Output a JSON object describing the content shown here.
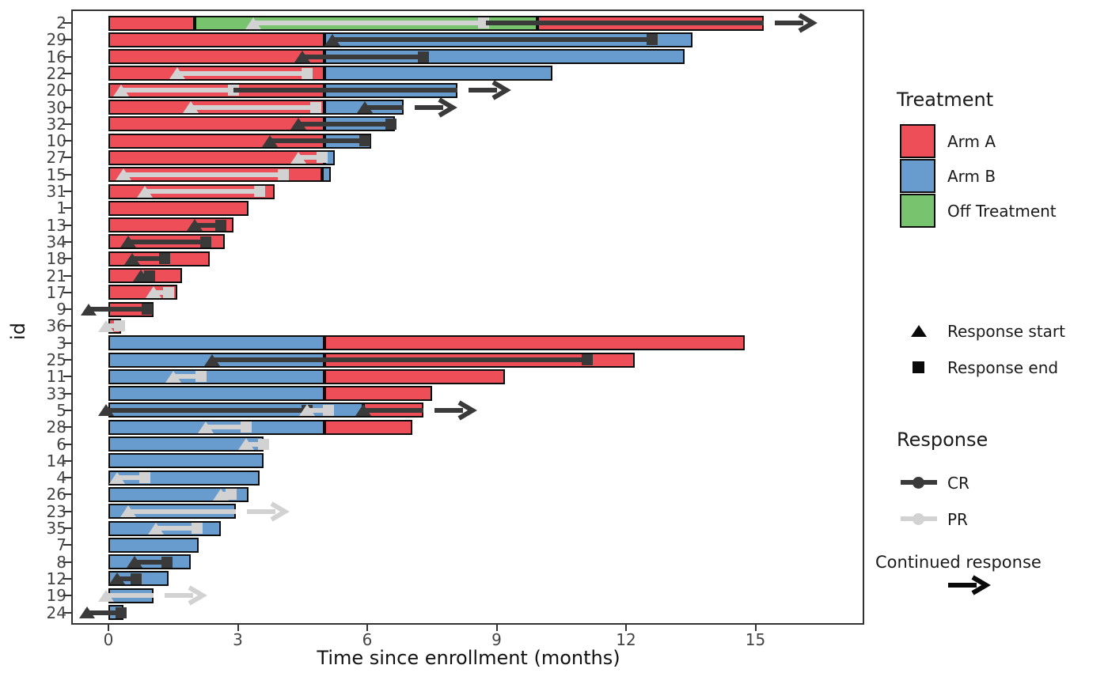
{
  "chart_data": {
    "type": "bar",
    "subtype": "swimmer-plot",
    "xlabel": "Time since enrollment (months)",
    "ylabel": "id",
    "x_ticks": [
      0,
      3,
      6,
      9,
      12,
      15
    ],
    "xlim": [
      -0.85,
      17.5
    ],
    "grid": false,
    "colors": {
      "arm_a": "#ED4E58",
      "arm_b": "#689CCE",
      "off_treatment": "#77C36E",
      "cr": "#3A3A3A",
      "pr": "#D2D2D2",
      "bar_stroke": "#0D0D0D",
      "panel_border": "#333333",
      "tick_label": "#444444"
    },
    "legend": {
      "treatment_title": "Treatment",
      "treatments": [
        {
          "label": "Arm A",
          "color": "#ED4E58"
        },
        {
          "label": "Arm B",
          "color": "#689CCE"
        },
        {
          "label": "Off Treatment",
          "color": "#77C36E"
        }
      ],
      "response_start_label": "Response start",
      "response_end_label": "Response end",
      "response_title": "Response",
      "responses": [
        {
          "label": "CR",
          "color": "#3A3A3A"
        },
        {
          "label": "PR",
          "color": "#D2D2D2"
        }
      ],
      "continued_label": "Continued response"
    },
    "rows": [
      {
        "id": "2",
        "segments": [
          {
            "arm": "A",
            "start": 0,
            "end": 2.0
          },
          {
            "arm": "OFF",
            "start": 2.0,
            "end": 9.95
          },
          {
            "arm": "A",
            "start": 9.95,
            "end": 15.2
          }
        ],
        "responses": [
          {
            "type": "PR",
            "start": 3.35,
            "end": 8.7,
            "tri": true,
            "sq": true,
            "arrow": false
          },
          {
            "type": "CR",
            "start": 8.75,
            "end": 15.2,
            "tri": false,
            "sq": false,
            "arrow": true
          }
        ]
      },
      {
        "id": "29",
        "segments": [
          {
            "arm": "A",
            "start": 0,
            "end": 5.0
          },
          {
            "arm": "B",
            "start": 5.0,
            "end": 13.55
          }
        ],
        "responses": [
          {
            "type": "CR",
            "start": 5.2,
            "end": 12.6,
            "tri": true,
            "sq": true,
            "arrow": false
          }
        ]
      },
      {
        "id": "16",
        "segments": [
          {
            "arm": "A",
            "start": 0,
            "end": 5.0
          },
          {
            "arm": "B",
            "start": 5.0,
            "end": 13.35
          }
        ],
        "responses": [
          {
            "type": "CR",
            "start": 4.5,
            "end": 7.3,
            "tri": true,
            "sq": true,
            "arrow": false
          }
        ]
      },
      {
        "id": "22",
        "segments": [
          {
            "arm": "A",
            "start": 0,
            "end": 5.0
          },
          {
            "arm": "B",
            "start": 5.0,
            "end": 10.3
          }
        ],
        "responses": [
          {
            "type": "PR",
            "start": 1.6,
            "end": 4.6,
            "tri": true,
            "sq": true,
            "arrow": false
          }
        ]
      },
      {
        "id": "20",
        "segments": [
          {
            "arm": "A",
            "start": 0,
            "end": 5.0
          },
          {
            "arm": "B",
            "start": 5.0,
            "end": 8.1
          }
        ],
        "responses": [
          {
            "type": "PR",
            "start": 0.3,
            "end": 2.9,
            "tri": true,
            "sq": true,
            "arrow": false
          },
          {
            "type": "CR",
            "start": 2.9,
            "end": 8.1,
            "tri": false,
            "sq": false,
            "arrow": true
          }
        ]
      },
      {
        "id": "30",
        "segments": [
          {
            "arm": "A",
            "start": 0,
            "end": 5.0
          },
          {
            "arm": "B",
            "start": 5.0,
            "end": 6.85
          }
        ],
        "responses": [
          {
            "type": "PR",
            "start": 1.9,
            "end": 4.8,
            "tri": true,
            "sq": true,
            "arrow": false
          },
          {
            "type": "CR",
            "start": 5.95,
            "end": 6.85,
            "tri": true,
            "sq": false,
            "arrow": true
          }
        ]
      },
      {
        "id": "32",
        "segments": [
          {
            "arm": "A",
            "start": 0,
            "end": 5.0
          },
          {
            "arm": "B",
            "start": 5.0,
            "end": 6.65
          }
        ],
        "responses": [
          {
            "type": "CR",
            "start": 4.4,
            "end": 6.55,
            "tri": true,
            "sq": true,
            "arrow": false
          }
        ]
      },
      {
        "id": "10",
        "segments": [
          {
            "arm": "A",
            "start": 0,
            "end": 5.0
          },
          {
            "arm": "B",
            "start": 5.0,
            "end": 6.1
          }
        ],
        "responses": [
          {
            "type": "CR",
            "start": 3.75,
            "end": 5.95,
            "tri": true,
            "sq": true,
            "arrow": false
          }
        ]
      },
      {
        "id": "27",
        "segments": [
          {
            "arm": "A",
            "start": 0,
            "end": 5.0
          },
          {
            "arm": "B",
            "start": 5.0,
            "end": 5.25
          }
        ],
        "responses": [
          {
            "type": "PR",
            "start": 4.4,
            "end": 4.95,
            "tri": true,
            "sq": true,
            "arrow": false
          }
        ]
      },
      {
        "id": "15",
        "segments": [
          {
            "arm": "A",
            "start": 0,
            "end": 4.95
          },
          {
            "arm": "B",
            "start": 4.95,
            "end": 5.15
          }
        ],
        "responses": [
          {
            "type": "PR",
            "start": 0.35,
            "end": 4.05,
            "tri": true,
            "sq": true,
            "arrow": false
          }
        ]
      },
      {
        "id": "31",
        "segments": [
          {
            "arm": "A",
            "start": 0,
            "end": 3.85
          }
        ],
        "responses": [
          {
            "type": "PR",
            "start": 0.85,
            "end": 3.5,
            "tri": true,
            "sq": true,
            "arrow": false
          }
        ]
      },
      {
        "id": "1",
        "segments": [
          {
            "arm": "A",
            "start": 0,
            "end": 3.25
          }
        ],
        "responses": []
      },
      {
        "id": "13",
        "segments": [
          {
            "arm": "A",
            "start": 0,
            "end": 2.9
          }
        ],
        "responses": [
          {
            "type": "CR",
            "start": 2.0,
            "end": 2.6,
            "tri": true,
            "sq": true,
            "arrow": false
          }
        ]
      },
      {
        "id": "34",
        "segments": [
          {
            "arm": "A",
            "start": 0,
            "end": 2.7
          }
        ],
        "responses": [
          {
            "type": "CR",
            "start": 0.45,
            "end": 2.25,
            "tri": true,
            "sq": true,
            "arrow": false
          }
        ]
      },
      {
        "id": "18",
        "segments": [
          {
            "arm": "A",
            "start": 0,
            "end": 2.35
          }
        ],
        "responses": [
          {
            "type": "CR",
            "start": 0.55,
            "end": 1.3,
            "tri": true,
            "sq": true,
            "arrow": false
          }
        ]
      },
      {
        "id": "21",
        "segments": [
          {
            "arm": "A",
            "start": 0,
            "end": 1.7
          }
        ],
        "responses": [
          {
            "type": "CR",
            "start": 0.75,
            "end": 0.95,
            "tri": true,
            "sq": true,
            "arrow": false
          }
        ]
      },
      {
        "id": "17",
        "segments": [
          {
            "arm": "A",
            "start": 0,
            "end": 1.6
          }
        ],
        "responses": [
          {
            "type": "PR",
            "start": 1.05,
            "end": 1.4,
            "tri": true,
            "sq": true,
            "arrow": false
          }
        ]
      },
      {
        "id": "9",
        "segments": [
          {
            "arm": "A",
            "start": 0,
            "end": 1.05
          }
        ],
        "responses": [
          {
            "type": "CR",
            "start": -0.45,
            "end": 0.9,
            "tri": true,
            "sq": true,
            "arrow": false
          }
        ]
      },
      {
        "id": "36",
        "segments": [
          {
            "arm": "A",
            "start": 0,
            "end": 0.3
          }
        ],
        "responses": [
          {
            "type": "PR",
            "start": -0.05,
            "end": 0.25,
            "tri": true,
            "sq": true,
            "arrow": false
          }
        ]
      },
      {
        "id": "3",
        "segments": [
          {
            "arm": "B",
            "start": 0,
            "end": 5.0
          },
          {
            "arm": "A",
            "start": 5.0,
            "end": 14.75
          }
        ],
        "responses": []
      },
      {
        "id": "25",
        "segments": [
          {
            "arm": "B",
            "start": 0,
            "end": 5.0
          },
          {
            "arm": "A",
            "start": 5.0,
            "end": 12.2
          }
        ],
        "responses": [
          {
            "type": "CR",
            "start": 2.4,
            "end": 11.1,
            "tri": true,
            "sq": true,
            "arrow": false
          }
        ]
      },
      {
        "id": "11",
        "segments": [
          {
            "arm": "B",
            "start": 0,
            "end": 5.0
          },
          {
            "arm": "A",
            "start": 5.0,
            "end": 9.2
          }
        ],
        "responses": [
          {
            "type": "PR",
            "start": 1.5,
            "end": 2.15,
            "tri": true,
            "sq": true,
            "arrow": false
          }
        ]
      },
      {
        "id": "33",
        "segments": [
          {
            "arm": "B",
            "start": 0,
            "end": 5.0
          },
          {
            "arm": "A",
            "start": 5.0,
            "end": 7.5
          }
        ],
        "responses": []
      },
      {
        "id": "5",
        "segments": [
          {
            "arm": "B",
            "start": 0,
            "end": 5.9
          },
          {
            "arm": "A",
            "start": 5.9,
            "end": 7.3
          }
        ],
        "responses": [
          {
            "type": "CR",
            "start": -0.05,
            "end": 4.6,
            "tri": true,
            "sq": true,
            "arrow": false
          },
          {
            "type": "PR",
            "start": 4.6,
            "end": 5.1,
            "tri": true,
            "sq": true,
            "arrow": false
          },
          {
            "type": "CR",
            "start": 5.9,
            "end": 7.3,
            "tri": true,
            "sq": false,
            "arrow": true
          }
        ]
      },
      {
        "id": "28",
        "segments": [
          {
            "arm": "B",
            "start": 0,
            "end": 5.0
          },
          {
            "arm": "A",
            "start": 5.0,
            "end": 7.05
          }
        ],
        "responses": [
          {
            "type": "PR",
            "start": 2.25,
            "end": 3.2,
            "tri": true,
            "sq": true,
            "arrow": false
          }
        ]
      },
      {
        "id": "6",
        "segments": [
          {
            "arm": "B",
            "start": 0,
            "end": 3.6
          }
        ],
        "responses": [
          {
            "type": "PR",
            "start": 3.2,
            "end": 3.6,
            "tri": true,
            "sq": true,
            "arrow": false
          }
        ]
      },
      {
        "id": "14",
        "segments": [
          {
            "arm": "B",
            "start": 0,
            "end": 3.6
          }
        ],
        "responses": []
      },
      {
        "id": "4",
        "segments": [
          {
            "arm": "B",
            "start": 0,
            "end": 3.5
          }
        ],
        "responses": [
          {
            "type": "PR",
            "start": 0.2,
            "end": 0.85,
            "tri": true,
            "sq": true,
            "arrow": false
          }
        ]
      },
      {
        "id": "26",
        "segments": [
          {
            "arm": "B",
            "start": 0,
            "end": 3.25
          }
        ],
        "responses": [
          {
            "type": "PR",
            "start": 2.6,
            "end": 2.85,
            "tri": true,
            "sq": true,
            "arrow": false
          }
        ]
      },
      {
        "id": "23",
        "segments": [
          {
            "arm": "B",
            "start": 0,
            "end": 2.95
          }
        ],
        "responses": [
          {
            "type": "PR",
            "start": 0.45,
            "end": 2.95,
            "tri": true,
            "sq": false,
            "arrow": true
          }
        ]
      },
      {
        "id": "35",
        "segments": [
          {
            "arm": "B",
            "start": 0,
            "end": 2.6
          }
        ],
        "responses": [
          {
            "type": "PR",
            "start": 1.1,
            "end": 2.05,
            "tri": true,
            "sq": true,
            "arrow": false
          }
        ]
      },
      {
        "id": "7",
        "segments": [
          {
            "arm": "B",
            "start": 0,
            "end": 2.1
          }
        ],
        "responses": []
      },
      {
        "id": "8",
        "segments": [
          {
            "arm": "B",
            "start": 0,
            "end": 1.9
          }
        ],
        "responses": [
          {
            "type": "CR",
            "start": 0.6,
            "end": 1.35,
            "tri": true,
            "sq": true,
            "arrow": false
          }
        ]
      },
      {
        "id": "12",
        "segments": [
          {
            "arm": "B",
            "start": 0,
            "end": 1.4
          }
        ],
        "responses": [
          {
            "type": "CR",
            "start": 0.2,
            "end": 0.65,
            "tri": true,
            "sq": true,
            "arrow": false
          }
        ]
      },
      {
        "id": "19",
        "segments": [
          {
            "arm": "B",
            "start": 0,
            "end": 1.05
          }
        ],
        "responses": [
          {
            "type": "PR",
            "start": -0.05,
            "end": 1.05,
            "tri": true,
            "sq": false,
            "arrow": true
          }
        ]
      },
      {
        "id": "24",
        "segments": [
          {
            "arm": "B",
            "start": 0,
            "end": 0.35
          }
        ],
        "responses": [
          {
            "type": "CR",
            "start": -0.5,
            "end": 0.3,
            "tri": true,
            "sq": true,
            "arrow": false
          }
        ]
      }
    ]
  }
}
